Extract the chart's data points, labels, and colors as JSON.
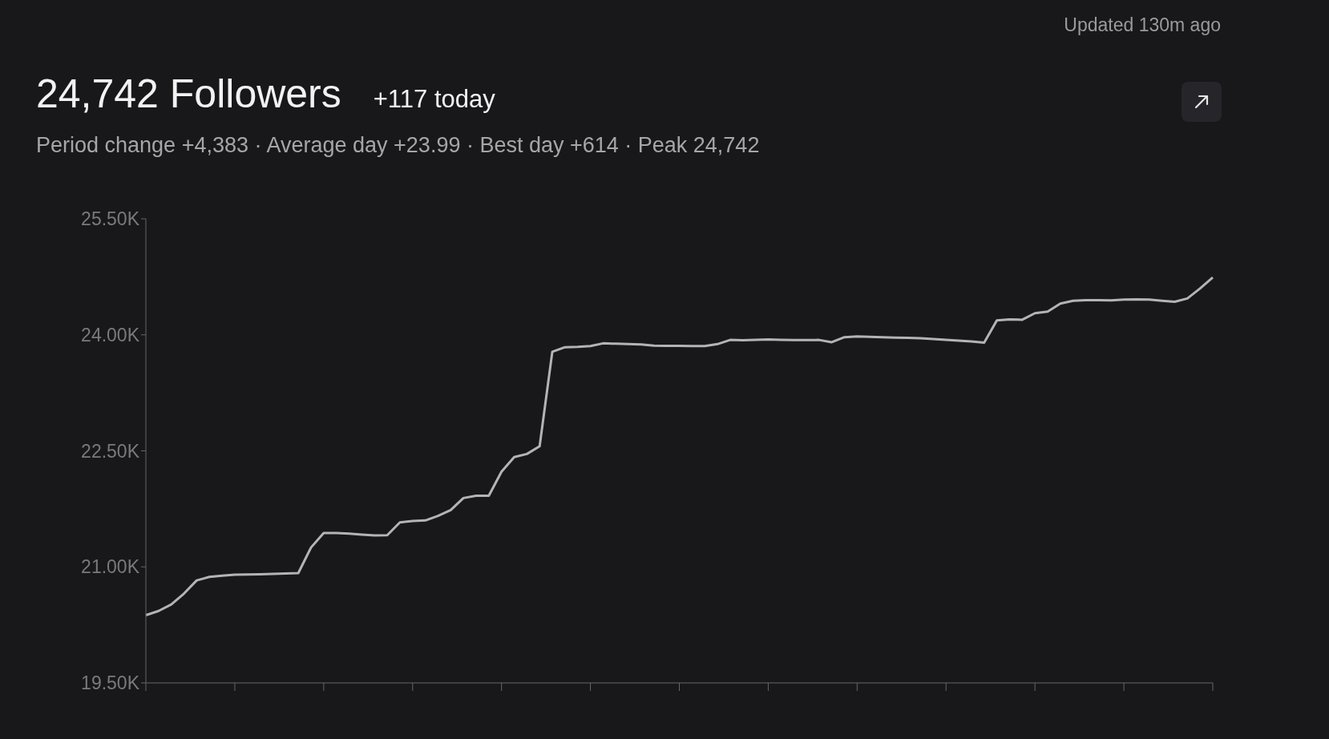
{
  "chart_data": {
    "type": "line",
    "title": "24,742 Followers",
    "subtitle": "+117 today",
    "annotations": [
      "Updated 130m ago",
      "Period change +4,383 · Average day +23.99 · Best day +614 · Peak 24,742"
    ],
    "categories": [
      null,
      null,
      null,
      null,
      null,
      null,
      null,
      null,
      null,
      null,
      null,
      null,
      null,
      null,
      null,
      null,
      null,
      null,
      null,
      null,
      null,
      null,
      null,
      null,
      null,
      null,
      null,
      null,
      null,
      null,
      null,
      null,
      null,
      null,
      null,
      null,
      null,
      null,
      null,
      null,
      null,
      null,
      null,
      null,
      null,
      null,
      null,
      null,
      null,
      null,
      null,
      null,
      null,
      null,
      null,
      null,
      null,
      null,
      null,
      null,
      null,
      null,
      null,
      null,
      null,
      null,
      null,
      null,
      null,
      null,
      null,
      null,
      null,
      null,
      null,
      null,
      null,
      null,
      null,
      null,
      null,
      null,
      null,
      null,
      null
    ],
    "series": [
      {
        "color": "#b4b4b4",
        "values": [
          20376,
          20430,
          20515,
          20655,
          20825,
          20870,
          20885,
          20900,
          20902,
          20905,
          20910,
          20915,
          20920,
          21250,
          21438,
          21438,
          21430,
          21418,
          21408,
          21410,
          21575,
          21594,
          21600,
          21660,
          21734,
          21890,
          21920,
          21920,
          22230,
          22420,
          22460,
          22560,
          23781,
          23840,
          23845,
          23855,
          23890,
          23885,
          23880,
          23875,
          23860,
          23858,
          23858,
          23855,
          23855,
          23880,
          23934,
          23930,
          23935,
          23940,
          23935,
          23932,
          23932,
          23934,
          23905,
          23970,
          23978,
          23975,
          23970,
          23965,
          23960,
          23955,
          23945,
          23935,
          23925,
          23915,
          23900,
          24186,
          24200,
          24195,
          24280,
          24300,
          24405,
          24440,
          24449,
          24449,
          24445,
          24455,
          24458,
          24455,
          24440,
          24427,
          24470,
          24600,
          24742
        ]
      }
    ],
    "ylim": [
      19500,
      25500
    ],
    "yticks": [
      {
        "value": 19500,
        "label": "19.50K"
      },
      {
        "value": 21000,
        "label": "21.00K"
      },
      {
        "value": 22500,
        "label": "22.50K"
      },
      {
        "value": 24000,
        "label": "24.00K"
      },
      {
        "value": 25500,
        "label": "25.50K"
      }
    ],
    "grid": false,
    "marker": "none",
    "line_style": "solid",
    "tick_labels": "y"
  }
}
